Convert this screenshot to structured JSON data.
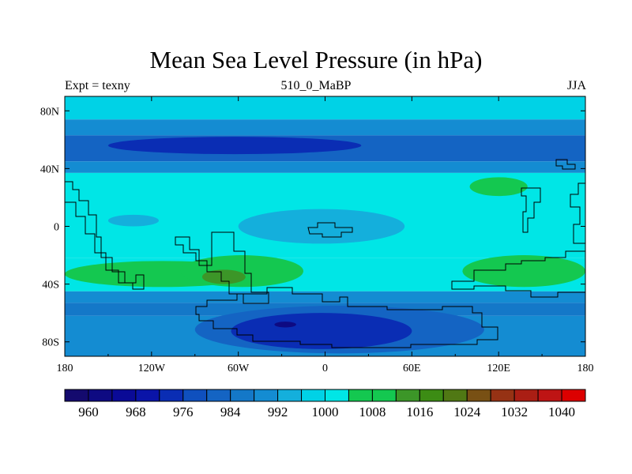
{
  "chart_data": {
    "type": "heatmap",
    "title": "Mean Sea Level Pressure (in hPa)",
    "subtitle_left": "Expt = texny",
    "subtitle_center": "510_0_MaBP",
    "subtitle_right": "JJA",
    "x_axis": {
      "range": [
        -180,
        180
      ],
      "ticks": [
        {
          "value": -180,
          "label": "180"
        },
        {
          "value": -120,
          "label": "120W"
        },
        {
          "value": -60,
          "label": "60W"
        },
        {
          "value": 0,
          "label": "0"
        },
        {
          "value": 60,
          "label": "60E"
        },
        {
          "value": 120,
          "label": "120E"
        },
        {
          "value": 180,
          "label": "180"
        }
      ]
    },
    "y_axis": {
      "range": [
        -90,
        90
      ],
      "ticks": [
        {
          "value": 80,
          "label": "80N"
        },
        {
          "value": 40,
          "label": "40N"
        },
        {
          "value": 0,
          "label": "0"
        },
        {
          "value": -40,
          "label": "40S"
        },
        {
          "value": -80,
          "label": "80S"
        }
      ]
    },
    "colorbar": {
      "levels": [
        956,
        960,
        964,
        968,
        972,
        976,
        980,
        984,
        988,
        992,
        996,
        1000,
        1004,
        1008,
        1012,
        1016,
        1020,
        1024,
        1028,
        1032,
        1036,
        1040,
        1044
      ],
      "colors": [
        "#140a6e",
        "#0e0a82",
        "#0a0a96",
        "#0a14a8",
        "#0a2db4",
        "#0f50be",
        "#1464c3",
        "#1478c8",
        "#148cd2",
        "#14afdc",
        "#00d2e6",
        "#00e6e6",
        "#14c850",
        "#14c850",
        "#3c9628",
        "#3c8c14",
        "#507814",
        "#785014",
        "#963214",
        "#aa1e14",
        "#be1414",
        "#dc0000"
      ],
      "labels": [
        {
          "value": 960,
          "label": "960"
        },
        {
          "value": 968,
          "label": "968"
        },
        {
          "value": 976,
          "label": "976"
        },
        {
          "value": 984,
          "label": "984"
        },
        {
          "value": 992,
          "label": "992"
        },
        {
          "value": 1000,
          "label": "1000"
        },
        {
          "value": 1008,
          "label": "1008"
        },
        {
          "value": 1016,
          "label": "1016"
        },
        {
          "value": 1024,
          "label": "1024"
        },
        {
          "value": 1032,
          "label": "1032"
        },
        {
          "value": 1040,
          "label": "1040"
        }
      ]
    },
    "zonal_bands": [
      {
        "lat": [
          74,
          90
        ],
        "value": 998
      },
      {
        "lat": [
          63,
          74
        ],
        "value": 990
      },
      {
        "lat": [
          45,
          63
        ],
        "value": 982
      },
      {
        "lat": [
          37,
          45
        ],
        "value": 990
      },
      {
        "lat": [
          -22,
          37
        ],
        "value": 1001
      },
      {
        "lat": [
          -45,
          -22
        ],
        "value": 1001
      },
      {
        "lat": [
          -53,
          -45
        ],
        "value": 990
      },
      {
        "lat": [
          -62,
          -53
        ],
        "value": 986
      },
      {
        "lat": [
          -90,
          -62
        ],
        "value": 990
      }
    ],
    "features": [
      {
        "name": "north-pacific-low",
        "lon": [
          -150,
          25
        ],
        "lat": [
          50,
          62
        ],
        "value": 974
      },
      {
        "name": "sh-high-belt-west",
        "lon": [
          -180,
          -45
        ],
        "lat": [
          -42,
          -24
        ],
        "value": 1006
      },
      {
        "name": "sh-high-belt-central",
        "lon": [
          -100,
          -15
        ],
        "lat": [
          -42,
          -20
        ],
        "value": 1006
      },
      {
        "name": "south-american-high-core",
        "lon": [
          -85,
          -55
        ],
        "lat": [
          -40,
          -30
        ],
        "value": 1014
      },
      {
        "name": "indian-ocean-high",
        "lon": [
          95,
          180
        ],
        "lat": [
          -42,
          -20
        ],
        "value": 1006
      },
      {
        "name": "asian-high",
        "lon": [
          100,
          140
        ],
        "lat": [
          21,
          34
        ],
        "value": 1006
      },
      {
        "name": "equatorial-low",
        "lon": [
          -60,
          55
        ],
        "lat": [
          -12,
          12
        ],
        "value": 994
      },
      {
        "name": "pacific-east-low",
        "lon": [
          -150,
          -115
        ],
        "lat": [
          0,
          8
        ],
        "value": 994
      },
      {
        "name": "antarctic-low",
        "lon": [
          -90,
          110
        ],
        "lat": [
          -88,
          -55
        ],
        "value": 980
      },
      {
        "name": "antarctic-low-core",
        "lon": [
          -65,
          60
        ],
        "lat": [
          -85,
          -60
        ],
        "value": 972
      },
      {
        "name": "antarctic-min",
        "lon": [
          -35,
          -20
        ],
        "lat": [
          -70,
          -66
        ],
        "value": 962
      }
    ]
  }
}
